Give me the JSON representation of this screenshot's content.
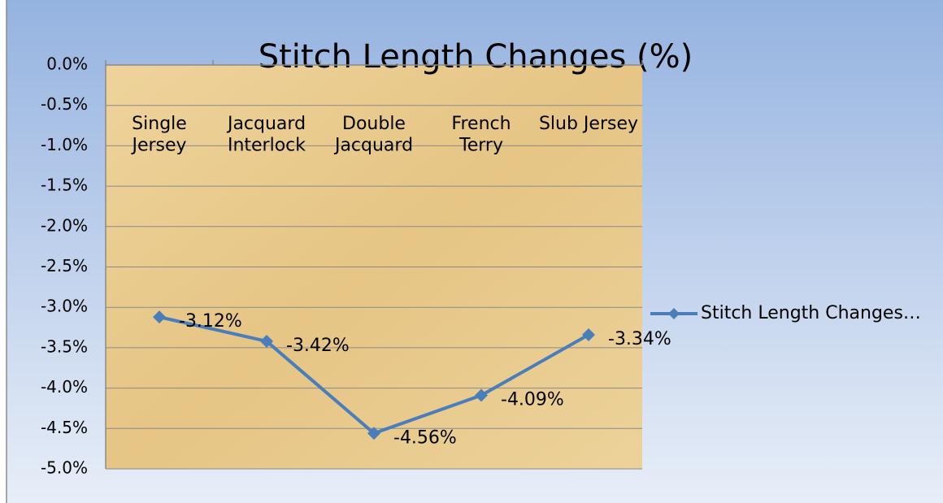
{
  "chart_data": {
    "type": "line",
    "title": "Stitch Length Changes (%)",
    "categories": [
      "Single\nJersey",
      "Jacquard\nInterlock",
      "Double\nJacquard",
      "French\nTerry",
      "Slub Jersey"
    ],
    "series": [
      {
        "name": "Stitch Length Changes…",
        "color": "#4a7ebb",
        "values": [
          -3.12,
          -3.42,
          -4.56,
          -4.09,
          -3.34
        ],
        "value_labels": [
          "-3.12%",
          "-3.42%",
          "-4.56%",
          "-4.09%",
          "-3.34%"
        ]
      }
    ],
    "ylim": [
      -5,
      0
    ],
    "yticks": [
      {
        "value": 0,
        "label": "0.0%"
      },
      {
        "value": -0.5,
        "label": "-0.5%"
      },
      {
        "value": -1,
        "label": "-1.0%"
      },
      {
        "value": -1.5,
        "label": "-1.5%"
      },
      {
        "value": -2,
        "label": "-2.0%"
      },
      {
        "value": -2.5,
        "label": "-2.5%"
      },
      {
        "value": -3,
        "label": "-3.0%"
      },
      {
        "value": -3.5,
        "label": "-3.5%"
      },
      {
        "value": -4,
        "label": "-4.0%"
      },
      {
        "value": -4.5,
        "label": "-4.5%"
      },
      {
        "value": -5,
        "label": "-5.0%"
      }
    ],
    "grid": true,
    "legend": "right"
  }
}
